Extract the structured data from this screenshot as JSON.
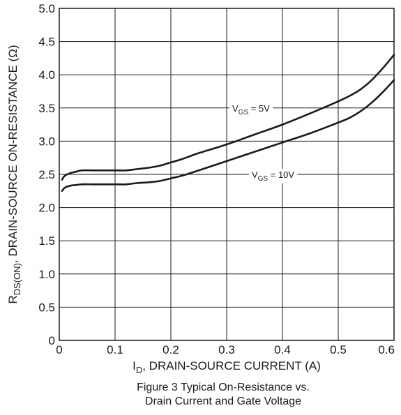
{
  "chart_data": {
    "type": "line",
    "caption": {
      "line1": "Figure 3 Typical On-Resistance vs.",
      "line2": "Drain Current and Gate Voltage"
    },
    "xlabel": {
      "main": "I",
      "sub": "D",
      "rest": ", DRAIN-SOURCE CURRENT (A)"
    },
    "ylabel": {
      "main": "R",
      "sub": "DS(ON)",
      "rest": ", DRAIN-SOURCE ON-RESISTANCE (Ω)"
    },
    "xlim": [
      0,
      0.6
    ],
    "ylim": [
      0,
      5.0
    ],
    "x_ticks": [
      "0",
      "0.1",
      "0.2",
      "0.3",
      "0.4",
      "0.5",
      "0.6"
    ],
    "y_ticks": [
      "0",
      "0.5",
      "1.0",
      "1.5",
      "2.0",
      "2.5",
      "3.0",
      "3.5",
      "4.0",
      "4.5",
      "5.0"
    ],
    "grid": true,
    "series": [
      {
        "name": "VGS = 5V",
        "label": {
          "main": "V",
          "sub": "GS",
          "rest": " = 5V"
        },
        "color": "#1a1a1a",
        "x": [
          0.005,
          0.01,
          0.02,
          0.03,
          0.04,
          0.06,
          0.08,
          0.1,
          0.12,
          0.14,
          0.16,
          0.18,
          0.2,
          0.22,
          0.25,
          0.3,
          0.35,
          0.4,
          0.45,
          0.5,
          0.52,
          0.54,
          0.56,
          0.58,
          0.6
        ],
        "values": [
          2.42,
          2.48,
          2.52,
          2.54,
          2.56,
          2.56,
          2.56,
          2.56,
          2.56,
          2.58,
          2.6,
          2.63,
          2.68,
          2.73,
          2.82,
          2.95,
          3.1,
          3.25,
          3.42,
          3.6,
          3.68,
          3.78,
          3.92,
          4.1,
          4.3
        ]
      },
      {
        "name": "VGS = 10V",
        "label": {
          "main": "V",
          "sub": "GS",
          "rest": " = 10V"
        },
        "color": "#1a1a1a",
        "x": [
          0.005,
          0.01,
          0.02,
          0.03,
          0.04,
          0.06,
          0.08,
          0.1,
          0.12,
          0.14,
          0.16,
          0.18,
          0.2,
          0.22,
          0.25,
          0.3,
          0.35,
          0.4,
          0.45,
          0.5,
          0.52,
          0.54,
          0.56,
          0.58,
          0.6
        ],
        "values": [
          2.25,
          2.3,
          2.33,
          2.34,
          2.35,
          2.35,
          2.35,
          2.35,
          2.35,
          2.37,
          2.38,
          2.4,
          2.44,
          2.48,
          2.56,
          2.7,
          2.84,
          2.98,
          3.12,
          3.28,
          3.35,
          3.45,
          3.58,
          3.74,
          3.92
        ]
      }
    ]
  }
}
